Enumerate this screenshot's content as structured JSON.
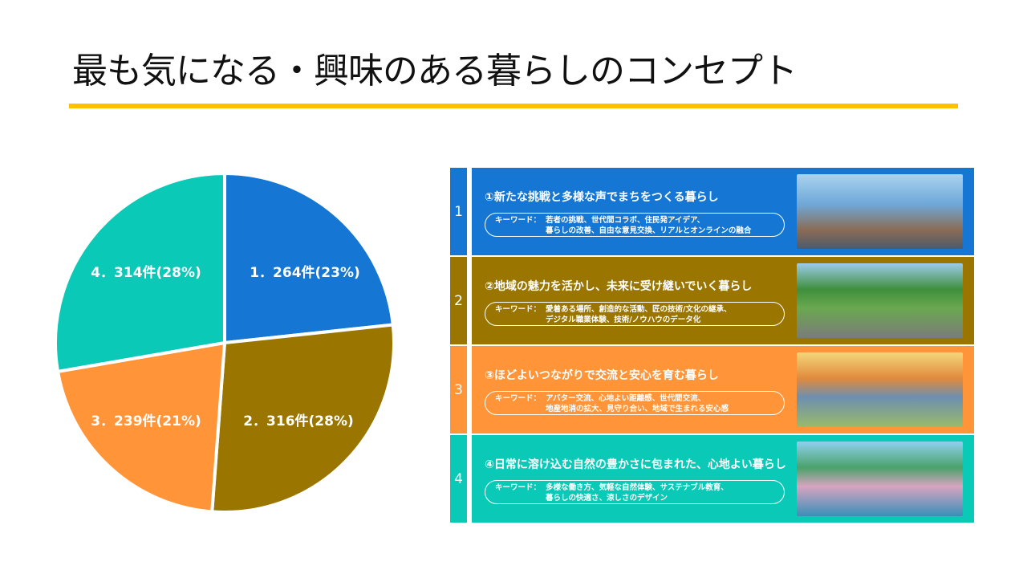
{
  "title": "最も気になる・興味のある暮らしのコンセプト",
  "chart_data": {
    "type": "pie",
    "categories": [
      "1",
      "2",
      "3",
      "4"
    ],
    "values": [
      264,
      316,
      239,
      314
    ],
    "labels": [
      "1．264件(23%)",
      "2．316件(28%)",
      "3．239件(21%)",
      "4．314件(28%)"
    ],
    "percents": [
      23,
      28,
      21,
      28
    ],
    "colors": [
      "#1576D4",
      "#9A7500",
      "#FF9538",
      "#0BC9B7"
    ],
    "start": "top",
    "direction": "clockwise"
  },
  "concepts": [
    {
      "num": "1",
      "title": "①新たな挑戦と多様な声でまちをつくる暮らし",
      "keyword_label": "キーワード：",
      "kw1": "若者の挑戦、世代間コラボ、住民発アイデア、",
      "kw2": "暮らしの改善、自由な意見交換、リアルとオンラインの融合",
      "color": "#1576D4"
    },
    {
      "num": "2",
      "title": "②地域の魅力を活かし、未来に受け継いでいく暮らし",
      "keyword_label": "キーワード：",
      "kw1": "愛着ある場所、創造的な活動、匠の技術/文化の継承、",
      "kw2": "デジタル職業体験、技術/ノウハウのデータ化",
      "color": "#9A7500"
    },
    {
      "num": "3",
      "title": "③ほどよいつながりで交流と安心を育む暮らし",
      "keyword_label": "キーワード：",
      "kw1": "アバター交流、心地よい距離感、世代間交流、",
      "kw2": "地産地消の拡大、見守り合い、地域で生まれる安心感",
      "color": "#FF9538"
    },
    {
      "num": "4",
      "title": "④日常に溶け込む自然の豊かさに包まれた、心地よい暮らし",
      "keyword_label": "キーワード：",
      "kw1": "多様な働き方、気軽な自然体験、サステナブル教育、",
      "kw2": "暮らしの快適さ、涼しさのデザイン",
      "color": "#0BC9B7"
    }
  ]
}
